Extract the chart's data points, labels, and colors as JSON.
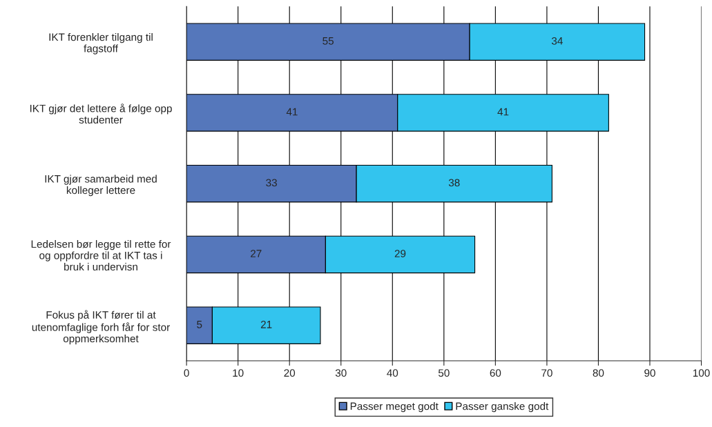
{
  "chart_data": {
    "type": "bar",
    "orientation": "horizontal",
    "stacked": true,
    "categories": [
      "IKT forenkler tilgang til\nfagstoff",
      "IKT gjør det lettere å følge opp\nstudenter",
      "IKT gjør samarbeid med\nkolleger lettere",
      "Ledelsen bør legge til rette for\nog oppfordre til at IKT tas i\nbruk i undervisn",
      "Fokus på IKT fører til at\nutenomfaglige forh får for stor\noppmerksomhet"
    ],
    "series": [
      {
        "name": "Passer meget godt",
        "color": "#5577bb",
        "values": [
          55,
          41,
          33,
          27,
          5
        ]
      },
      {
        "name": "Passer ganske godt",
        "color": "#33c4ee",
        "values": [
          34,
          41,
          38,
          29,
          21
        ]
      }
    ],
    "xlim": [
      0,
      100
    ],
    "xticks": [
      0,
      10,
      20,
      30,
      40,
      50,
      60,
      70,
      80,
      90,
      100
    ],
    "grid": "x",
    "legend": "bottom",
    "data_labels": true
  }
}
